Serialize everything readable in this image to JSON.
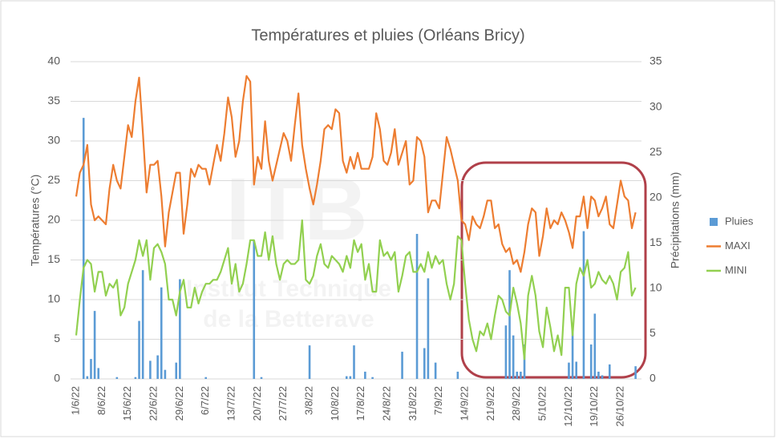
{
  "chart_data": {
    "type": "bar-line",
    "title": "Températures et pluies (Orléans Bricy)",
    "y_label": "Températures (°C)",
    "y2_label": "Précipitations (mm)",
    "watermark": [
      "ITB",
      "Institut Technique",
      "de la Betterave"
    ],
    "ylim": [
      0,
      40
    ],
    "yticks": [
      0,
      5,
      10,
      15,
      20,
      25,
      30,
      35,
      40
    ],
    "y2lim": [
      0,
      35
    ],
    "y2ticks": [
      0,
      5,
      10,
      15,
      20,
      25,
      30,
      35
    ],
    "grid": true,
    "legend": "right",
    "categories": [
      "1/6/22",
      null,
      null,
      null,
      null,
      null,
      null,
      "8/6/22",
      null,
      null,
      null,
      null,
      null,
      null,
      "15/6/22",
      null,
      null,
      null,
      null,
      null,
      null,
      "22/6/22",
      null,
      null,
      null,
      null,
      null,
      null,
      "29/6/22",
      null,
      null,
      null,
      null,
      null,
      null,
      "6/7/22",
      null,
      null,
      null,
      null,
      null,
      null,
      "13/7/22",
      null,
      null,
      null,
      null,
      null,
      null,
      "20/7/22",
      null,
      null,
      null,
      null,
      null,
      null,
      "27/7/22",
      null,
      null,
      null,
      null,
      null,
      null,
      "3/8/22",
      null,
      null,
      null,
      null,
      null,
      null,
      "10/8/22",
      null,
      null,
      null,
      null,
      null,
      null,
      "17/8/22",
      null,
      null,
      null,
      null,
      null,
      null,
      "24/8/22",
      null,
      null,
      null,
      null,
      null,
      null,
      "31/8/22",
      null,
      null,
      null,
      null,
      null,
      null,
      "7/9/22",
      null,
      null,
      null,
      null,
      null,
      null,
      "14/9/22",
      null,
      null,
      null,
      null,
      null,
      null,
      "21/9/22",
      null,
      null,
      null,
      null,
      null,
      null,
      "28/9/22",
      null,
      null,
      null,
      null,
      null,
      null,
      "5/10/22",
      null,
      null,
      null,
      null,
      null,
      null,
      "12/10/22",
      null,
      null,
      null,
      null,
      null,
      null,
      "19/10/22",
      null,
      null,
      null,
      null,
      null,
      null,
      "26/10/22",
      null,
      null,
      null,
      null
    ],
    "series": [
      {
        "name": "Pluies",
        "kind": "bar",
        "axis": "y2",
        "color": "#5b9bd5",
        "values": [
          0,
          0,
          28.8,
          0.3,
          2.2,
          7.5,
          1.2,
          0,
          0,
          0,
          0,
          0.2,
          0,
          0,
          0,
          0,
          0.2,
          6.4,
          12,
          0,
          2,
          0,
          2.6,
          10.1,
          1,
          0,
          0,
          1.8,
          11,
          0,
          0,
          0,
          0,
          0,
          0,
          0.2,
          0,
          0,
          0,
          0,
          0,
          0,
          0,
          0,
          0,
          0,
          0,
          0,
          15.3,
          0,
          0.2,
          0,
          0,
          0,
          0,
          0,
          0,
          0,
          0,
          0,
          0,
          0,
          0,
          3.7,
          0,
          0,
          0,
          0,
          0,
          0,
          0,
          0,
          0,
          0.3,
          0.3,
          3.7,
          0,
          0,
          0.8,
          0,
          0.2,
          0,
          0,
          0,
          0,
          0,
          0,
          0,
          3,
          0,
          0,
          0,
          16,
          0,
          3.4,
          11.1,
          0,
          1.8,
          0,
          0,
          0,
          0,
          0,
          0.8,
          0,
          0,
          0,
          0,
          0,
          0,
          0,
          0,
          0,
          0,
          0,
          0,
          5.9,
          12,
          4.8,
          0.8,
          0.8,
          3.8,
          0,
          0,
          0,
          0,
          0,
          0,
          0,
          0,
          0,
          0,
          0,
          1.8,
          6,
          1.9,
          0,
          16.3,
          0,
          3.8,
          7.2,
          0.8,
          0.4,
          0,
          1.6,
          0,
          0,
          0,
          0,
          0,
          0,
          1.4
        ]
      },
      {
        "name": "MAXI",
        "kind": "line",
        "color": "#ed7d31",
        "values": [
          23,
          26,
          27,
          29.5,
          22,
          20,
          20.5,
          20,
          19.5,
          24,
          27,
          25,
          24,
          28,
          32,
          30.5,
          35,
          38,
          31,
          23.5,
          27,
          27,
          27.5,
          23,
          16.7,
          21,
          23.5,
          26,
          26,
          18.3,
          22,
          26.5,
          25.5,
          27,
          26.5,
          26.5,
          24.5,
          27,
          29.5,
          27.5,
          31,
          35.5,
          33,
          28,
          30,
          35,
          38.2,
          37.5,
          24.5,
          28,
          26.5,
          32.5,
          27.5,
          25,
          27,
          29,
          31,
          30,
          27.5,
          32,
          36,
          29.5,
          26.5,
          24,
          22,
          24.5,
          27.5,
          31.5,
          32,
          31.5,
          34,
          33.5,
          27.5,
          26,
          28,
          26.5,
          28.5,
          26.5,
          26.5,
          26.5,
          28,
          33.5,
          31.5,
          27.5,
          27,
          28.5,
          31.5,
          27,
          28.5,
          30,
          24.5,
          25,
          30.5,
          30,
          28,
          21,
          22.5,
          22.5,
          21.5,
          26,
          30.5,
          29,
          27,
          25,
          20,
          19.5,
          17.5,
          20.5,
          19.5,
          19,
          20.5,
          22.5,
          22.5,
          19,
          19.5,
          17,
          16,
          16.5,
          14.5,
          15,
          13.5,
          16,
          19.5,
          21.5,
          21,
          15.5,
          18,
          21.5,
          19,
          20,
          19.5,
          21,
          20,
          18.5,
          16.5,
          20.5,
          20.5,
          23,
          19,
          23,
          22.5,
          20.5,
          21.5,
          23,
          19.5,
          19,
          22,
          25,
          23,
          22.5,
          19,
          21
        ]
      },
      {
        "name": "MINI",
        "kind": "line",
        "color": "#92d050",
        "values": [
          5.5,
          10,
          14,
          15,
          14.5,
          11,
          13.5,
          13.5,
          10.5,
          12,
          11.5,
          12.5,
          8,
          9,
          12,
          13.5,
          15,
          17.5,
          15.5,
          17.5,
          12.5,
          16.5,
          17,
          16,
          14.5,
          10,
          10,
          8,
          11,
          12.5,
          9,
          9,
          11.5,
          9.5,
          11,
          12,
          12,
          12.5,
          12.5,
          13.5,
          15,
          16.5,
          12,
          14.5,
          11,
          12,
          14.5,
          17.5,
          17.5,
          15.5,
          15.5,
          18.5,
          15,
          18,
          14.5,
          12.5,
          14.5,
          15,
          14.5,
          14.5,
          15,
          20,
          12.5,
          12,
          13,
          15.5,
          17,
          14.5,
          14,
          15.5,
          15,
          14.5,
          13.5,
          15.5,
          14,
          17.5,
          16,
          17,
          12.5,
          14.5,
          11,
          11,
          17.5,
          15.5,
          16,
          15,
          16,
          11,
          13,
          15.5,
          16,
          13.5,
          13.5,
          14.5,
          13.5,
          16,
          14,
          15.5,
          14.5,
          15,
          12,
          10,
          12,
          18,
          17.5,
          12,
          7.5,
          5,
          3.5,
          6,
          5.5,
          7,
          5,
          8,
          10.5,
          10,
          8.5,
          8,
          11.5,
          9.5,
          7,
          2.5,
          10.5,
          13,
          10.5,
          6,
          4,
          9,
          6.5,
          3.5,
          5.5,
          3,
          11.5,
          11.5,
          5.5,
          12,
          14,
          13,
          15,
          11.5,
          12,
          13.5,
          12.5,
          12,
          13,
          12,
          10,
          13.5,
          14,
          16,
          10.5,
          11.5
        ]
      }
    ]
  }
}
